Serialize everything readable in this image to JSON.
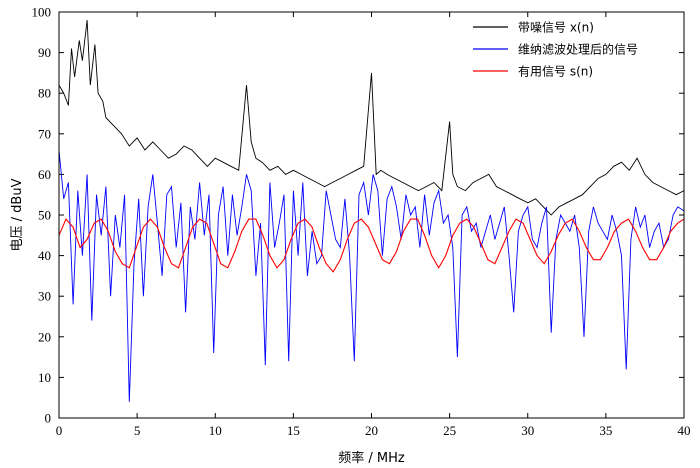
{
  "chart_data": {
    "type": "line",
    "xlabel": "频率 / MHz",
    "ylabel": "电压 / dBuV",
    "xlim": [
      0,
      40
    ],
    "ylim": [
      0,
      100
    ],
    "x_ticks": [
      0,
      5,
      10,
      15,
      20,
      25,
      30,
      35,
      40
    ],
    "y_ticks": [
      0,
      10,
      20,
      30,
      40,
      50,
      60,
      70,
      80,
      90,
      100
    ],
    "grid": false,
    "legend_position": "top-right",
    "series": [
      {
        "name": "带噪信号 x(n)",
        "color": "#000000",
        "x": [
          0,
          0.3,
          0.6,
          0.8,
          1.0,
          1.3,
          1.5,
          1.8,
          2.0,
          2.3,
          2.5,
          2.8,
          3.0,
          3.5,
          4.0,
          4.5,
          5.0,
          5.5,
          6.0,
          6.5,
          7.0,
          7.5,
          8.0,
          8.5,
          9.0,
          9.5,
          10.0,
          10.5,
          11.0,
          11.5,
          12.0,
          12.3,
          12.6,
          13.0,
          13.5,
          14.0,
          14.5,
          15.0,
          15.5,
          16.0,
          16.5,
          17.0,
          17.5,
          18.0,
          18.5,
          19.0,
          19.5,
          20.0,
          20.3,
          20.6,
          21.0,
          21.5,
          22.0,
          22.5,
          23.0,
          23.5,
          24.0,
          24.5,
          25.0,
          25.2,
          25.5,
          26.0,
          26.5,
          27.0,
          27.5,
          28.0,
          28.5,
          29.0,
          29.5,
          30.0,
          30.5,
          31.0,
          31.5,
          32.0,
          32.5,
          33.0,
          33.5,
          34.0,
          34.5,
          35.0,
          35.5,
          36.0,
          36.5,
          37.0,
          37.5,
          38.0,
          38.5,
          39.0,
          39.5,
          40.0
        ],
        "values": [
          82,
          80,
          77,
          91,
          84,
          93,
          88,
          98,
          82,
          92,
          80,
          78,
          74,
          72,
          70,
          67,
          69,
          66,
          68,
          66,
          64,
          65,
          67,
          66,
          64,
          62,
          64,
          63,
          62,
          61,
          82,
          68,
          64,
          63,
          61,
          62,
          60,
          61,
          60,
          59,
          58,
          57,
          58,
          59,
          60,
          61,
          62,
          85,
          60,
          61,
          60,
          59,
          58,
          57,
          56,
          57,
          58,
          56,
          73,
          60,
          57,
          56,
          58,
          59,
          60,
          57,
          56,
          55,
          54,
          53,
          54,
          52,
          50,
          52,
          53,
          54,
          55,
          57,
          59,
          60,
          62,
          63,
          61,
          64,
          60,
          58,
          57,
          56,
          55,
          56
        ]
      },
      {
        "name": "维纳滤波处理后的信号",
        "color": "#0000ff",
        "x": [
          0,
          0.3,
          0.6,
          0.9,
          1.2,
          1.5,
          1.8,
          2.1,
          2.4,
          2.7,
          3.0,
          3.3,
          3.6,
          3.9,
          4.2,
          4.5,
          4.8,
          5.1,
          5.4,
          5.7,
          6.0,
          6.3,
          6.6,
          6.9,
          7.2,
          7.5,
          7.8,
          8.1,
          8.4,
          8.7,
          9.0,
          9.3,
          9.6,
          9.9,
          10.2,
          10.5,
          10.8,
          11.1,
          11.4,
          11.7,
          12.0,
          12.3,
          12.6,
          12.9,
          13.2,
          13.5,
          13.8,
          14.1,
          14.4,
          14.7,
          15.0,
          15.3,
          15.6,
          15.9,
          16.2,
          16.5,
          16.8,
          17.1,
          17.4,
          17.7,
          18.0,
          18.3,
          18.6,
          18.9,
          19.2,
          19.5,
          19.8,
          20.1,
          20.4,
          20.7,
          21.0,
          21.3,
          21.6,
          21.9,
          22.2,
          22.5,
          22.8,
          23.1,
          23.4,
          23.7,
          24.0,
          24.3,
          24.6,
          24.9,
          25.2,
          25.5,
          25.8,
          26.1,
          26.4,
          26.7,
          27.0,
          27.3,
          27.6,
          27.9,
          28.2,
          28.5,
          28.8,
          29.1,
          29.4,
          29.7,
          30.0,
          30.3,
          30.6,
          30.9,
          31.2,
          31.5,
          31.8,
          32.1,
          32.4,
          32.7,
          33.0,
          33.3,
          33.6,
          33.9,
          34.2,
          34.5,
          34.8,
          35.1,
          35.4,
          35.7,
          36.0,
          36.3,
          36.6,
          36.9,
          37.2,
          37.5,
          37.8,
          38.1,
          38.4,
          38.7,
          39.0,
          39.3,
          39.6,
          40.0
        ],
        "values": [
          66,
          54,
          58,
          28,
          56,
          40,
          60,
          24,
          55,
          45,
          57,
          30,
          50,
          42,
          55,
          4,
          38,
          54,
          30,
          52,
          60,
          48,
          35,
          55,
          57,
          42,
          53,
          26,
          52,
          44,
          58,
          45,
          55,
          16,
          50,
          57,
          40,
          55,
          45,
          52,
          60,
          56,
          35,
          48,
          13,
          58,
          42,
          48,
          55,
          14,
          56,
          40,
          58,
          35,
          46,
          38,
          40,
          56,
          50,
          44,
          42,
          54,
          40,
          14,
          55,
          58,
          50,
          60,
          56,
          40,
          54,
          57,
          52,
          44,
          55,
          50,
          52,
          42,
          55,
          45,
          53,
          56,
          48,
          50,
          42,
          15,
          50,
          52,
          46,
          48,
          42,
          46,
          50,
          44,
          48,
          52,
          40,
          26,
          46,
          50,
          52,
          44,
          42,
          48,
          52,
          21,
          44,
          50,
          48,
          46,
          50,
          42,
          20,
          46,
          52,
          48,
          46,
          44,
          50,
          46,
          40,
          12,
          44,
          52,
          47,
          50,
          42,
          46,
          48,
          42,
          44,
          50,
          52,
          51
        ]
      },
      {
        "name": "有用信号 s(n)",
        "color": "#ff0000",
        "x": [
          0,
          0.45,
          0.9,
          1.35,
          1.8,
          2.25,
          2.7,
          3.15,
          3.6,
          4.05,
          4.5,
          4.95,
          5.4,
          5.85,
          6.3,
          6.75,
          7.2,
          7.65,
          8.1,
          8.55,
          9.0,
          9.45,
          9.9,
          10.35,
          10.8,
          11.25,
          11.7,
          12.15,
          12.6,
          13.05,
          13.5,
          13.95,
          14.4,
          14.85,
          15.3,
          15.75,
          16.2,
          16.65,
          17.1,
          17.55,
          18.0,
          18.45,
          18.9,
          19.35,
          19.8,
          20.25,
          20.7,
          21.15,
          21.6,
          22.05,
          22.5,
          22.95,
          23.4,
          23.85,
          24.3,
          24.75,
          25.2,
          25.65,
          26.1,
          26.55,
          27.0,
          27.45,
          27.9,
          28.35,
          28.8,
          29.25,
          29.7,
          30.15,
          30.6,
          31.05,
          31.5,
          31.95,
          32.4,
          32.85,
          33.3,
          33.75,
          34.2,
          34.65,
          35.1,
          35.55,
          36.0,
          36.45,
          36.9,
          37.35,
          37.8,
          38.25,
          38.7,
          39.15,
          39.6,
          40.0
        ],
        "values": [
          45,
          49,
          47,
          42,
          44,
          48,
          49,
          46,
          41,
          38,
          37,
          42,
          47,
          49,
          47,
          42,
          38,
          37,
          42,
          47,
          49,
          48,
          43,
          38,
          37,
          41,
          46,
          49,
          49,
          45,
          40,
          37,
          39,
          44,
          48,
          49,
          47,
          42,
          38,
          36,
          39,
          44,
          48,
          49,
          47,
          43,
          39,
          38,
          41,
          46,
          49,
          49,
          45,
          40,
          37,
          40,
          45,
          48,
          49,
          47,
          43,
          39,
          38,
          42,
          46,
          49,
          48,
          44,
          40,
          38,
          41,
          45,
          48,
          49,
          46,
          42,
          39,
          39,
          42,
          46,
          48,
          49,
          46,
          42,
          39,
          39,
          42,
          46,
          48,
          49
        ]
      }
    ]
  }
}
